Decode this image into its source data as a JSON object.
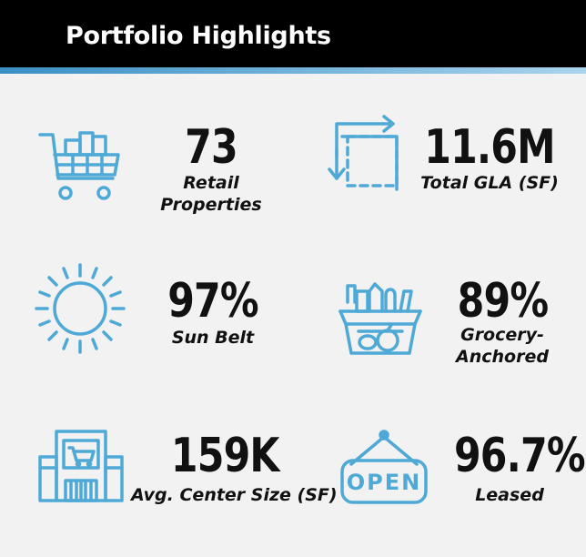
{
  "header": {
    "title": "Portfolio Highlights"
  },
  "colors": {
    "header_bg": "#000000",
    "accent": "#4fa9d6",
    "page_bg": "#f2f2f2",
    "text": "#111111"
  },
  "stats": [
    {
      "value": "73",
      "label_lines": [
        "Retail",
        "Properties"
      ],
      "icon": "shopping-cart-icon"
    },
    {
      "value": "11.6M",
      "label_lines": [
        "Total GLA (SF)"
      ],
      "icon": "square-footage-icon"
    },
    {
      "value": "97%",
      "label_lines": [
        "Sun Belt"
      ],
      "icon": "sun-icon"
    },
    {
      "value": "89%",
      "label_lines": [
        "Grocery-",
        "Anchored"
      ],
      "icon": "grocery-basket-icon"
    },
    {
      "value": "159K",
      "label_lines": [
        "Avg. Center Size (SF)"
      ],
      "icon": "storefront-icon"
    },
    {
      "value": "96.7%",
      "label_lines": [
        "Leased"
      ],
      "icon": "open-sign-icon"
    }
  ]
}
